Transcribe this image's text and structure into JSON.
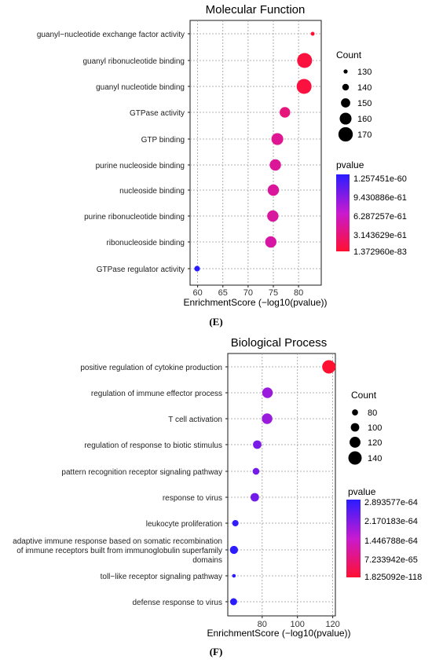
{
  "panel_labels": [
    "(E)",
    "(F)"
  ],
  "chart_data": [
    {
      "type": "scatter",
      "title": "Molecular Function",
      "xlabel": "EnrichmentScore (−log10(pvalue))",
      "ylabel": "",
      "xlim": [
        58.5,
        84.5
      ],
      "xticks": [
        60,
        65,
        70,
        75,
        80
      ],
      "grid": true,
      "terms": [
        "guanyl−nucleotide exchange factor activity",
        "guanyl ribonucleotide binding",
        "guanyl nucleotide binding",
        "GTPase activity",
        "GTP binding",
        "purine nucleoside binding",
        "nucleoside binding",
        "purine ribonucleotide binding",
        "ribonucleoside binding",
        "GTPase regulator activity"
      ],
      "x": [
        82.8,
        81.2,
        81.1,
        77.3,
        75.8,
        75.4,
        75.0,
        74.9,
        74.5,
        59.9
      ],
      "count": [
        129,
        172,
        172,
        155,
        160,
        158,
        158,
        158,
        158,
        136
      ],
      "pvalue": [
        1.3e-83,
        1.4e-82,
        1.6e-82,
        3e-78,
        1.2e-76,
        3.5e-76,
        8e-76,
        1e-75,
        3e-75,
        1.257451e-60
      ],
      "size_legend": {
        "title": "Count",
        "labels": [
          "130",
          "140",
          "150",
          "160",
          "170"
        ],
        "values": [
          130,
          140,
          150,
          160,
          170
        ]
      },
      "color_legend": {
        "title": "pvalue",
        "labels": [
          "1.257451e-60",
          "9.430886e-61",
          "6.287257e-61",
          "3.143629e-61",
          "1.372960e-83"
        ]
      }
    },
    {
      "type": "scatter",
      "title": "Biological Process",
      "xlabel": "EnrichmentScore (−log10(pvalue))",
      "ylabel": "",
      "xlim": [
        60.5,
        121.5
      ],
      "xticks": [
        80,
        100,
        120
      ],
      "grid": true,
      "terms": [
        "positive regulation of cytokine production",
        "regulation of immune effector process",
        "T cell activation",
        "regulation of response to biotic stimulus",
        "pattern recognition receptor signaling pathway",
        "response to virus",
        "leukocyte proliferation",
        "adaptive immune response based on somatic recombination\nof immune receptors built from immunoglobulin superfamily\ndomains",
        "toll−like receptor signaling pathway",
        "defense response to virus"
      ],
      "x": [
        117.8,
        83.0,
        82.8,
        77.2,
        76.5,
        75.8,
        64.8,
        64.0,
        64.0,
        63.8
      ],
      "count": [
        140,
        117,
        117,
        100,
        86,
        100,
        82,
        97,
        60,
        88
      ],
      "pvalue": [
        1.825092e-118,
        1e-83,
        1e-83,
        1e-77,
        1e-76,
        1e-76,
        1e-65,
        1.4e-64,
        1.6e-64,
        2.893577e-64
      ],
      "size_legend": {
        "title": "Count",
        "labels": [
          "80",
          "100",
          "120",
          "140"
        ],
        "values": [
          80,
          100,
          120,
          140
        ]
      },
      "color_legend": {
        "title": "pvalue",
        "labels": [
          "2.893577e-64",
          "2.170183e-64",
          "1.446788e-64",
          "7.233942e-65",
          "1.825092e-118"
        ]
      }
    }
  ]
}
